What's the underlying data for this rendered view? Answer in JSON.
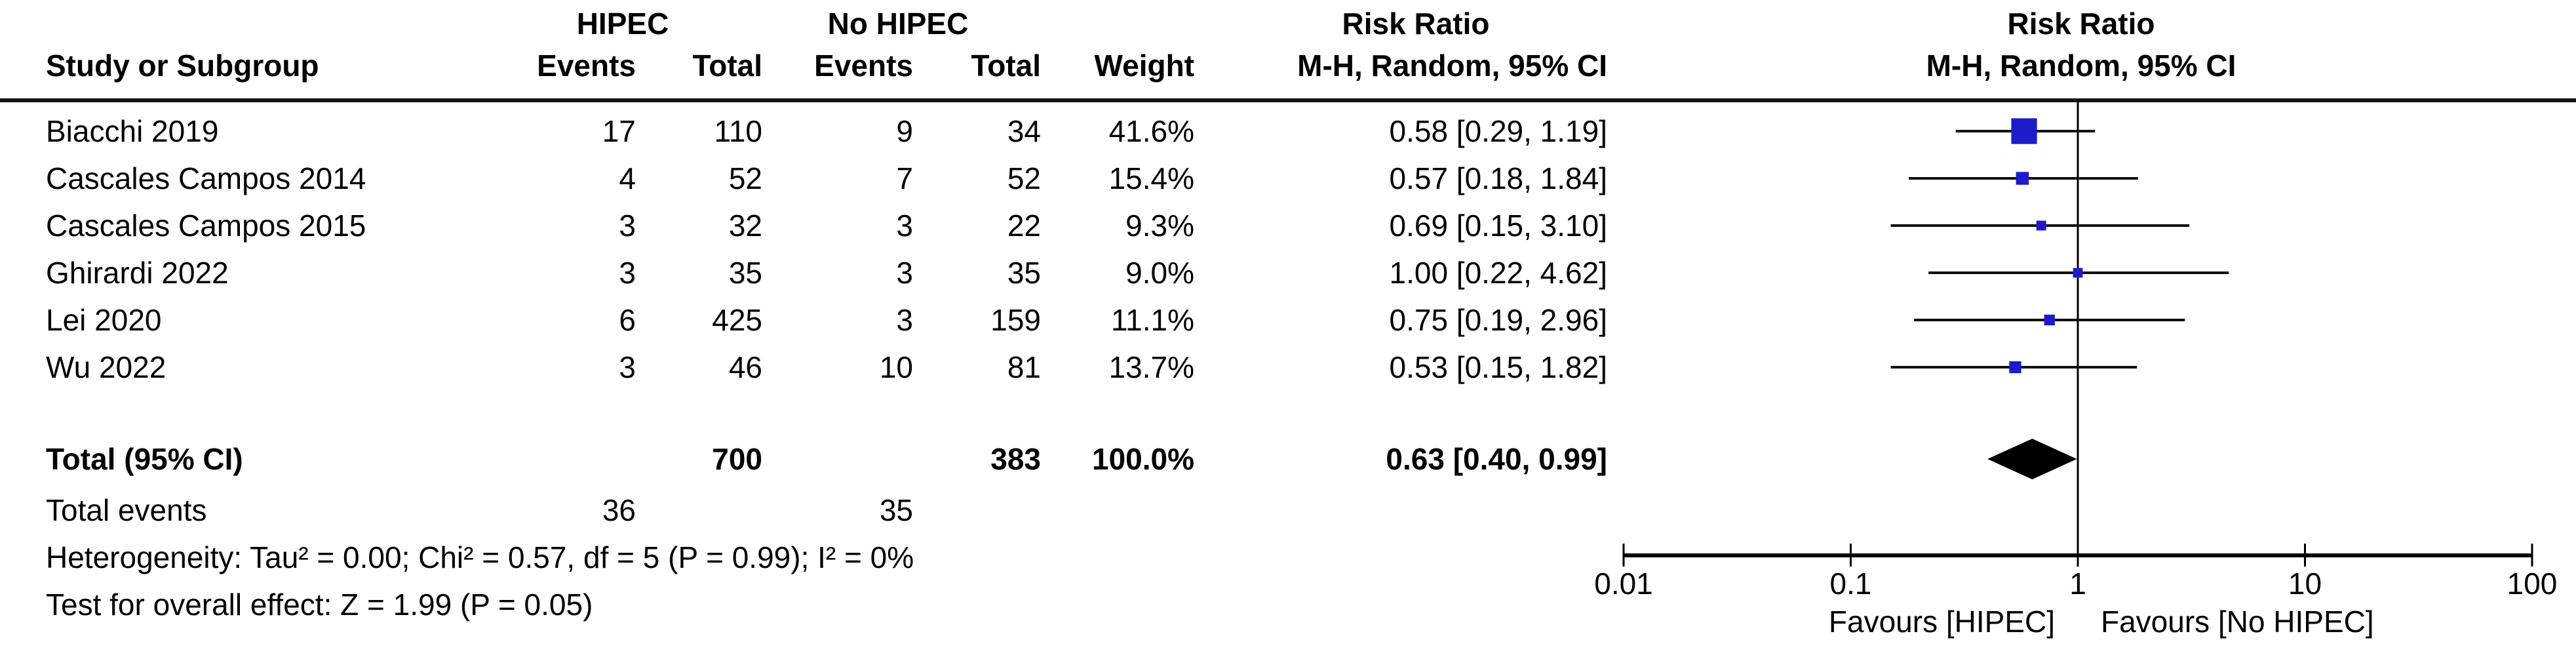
{
  "table_header": {
    "study": "Study or Subgroup",
    "group1": "HIPEC",
    "group2": "No HIPEC",
    "events": "Events",
    "total": "Total",
    "weight": "Weight",
    "risk_ratio": "Risk Ratio",
    "method": "M-H, Random, 95% CI"
  },
  "chart_data": {
    "type": "forest",
    "title": "Risk Ratio",
    "subtitle": "M-H, Random, 95% CI",
    "x_scale": "log",
    "x_range": [
      0.01,
      100
    ],
    "x_ticks": [
      "0.01",
      "0.1",
      "1",
      "10",
      "100"
    ],
    "x_tick_values": [
      0.01,
      0.1,
      1,
      10,
      100
    ],
    "null_line": 1,
    "favours_left": "Favours [HIPEC]",
    "favours_right": "Favours [No HIPEC]",
    "marker_color": "#1C1CCB",
    "diamond_color": "#000000",
    "studies": [
      {
        "name": "Biacchi 2019",
        "events_hipec": "17",
        "total_hipec": "110",
        "events_no_hipec": "9",
        "total_no_hipec": "34",
        "weight_label": "41.6%",
        "weight": 41.6,
        "rr": 0.58,
        "ci_low": 0.29,
        "ci_high": 1.19,
        "ci_label": "0.58 [0.29, 1.19]"
      },
      {
        "name": "Cascales Campos 2014",
        "events_hipec": "4",
        "total_hipec": "52",
        "events_no_hipec": "7",
        "total_no_hipec": "52",
        "weight_label": "15.4%",
        "weight": 15.4,
        "rr": 0.57,
        "ci_low": 0.18,
        "ci_high": 1.84,
        "ci_label": "0.57 [0.18, 1.84]"
      },
      {
        "name": "Cascales Campos 2015",
        "events_hipec": "3",
        "total_hipec": "32",
        "events_no_hipec": "3",
        "total_no_hipec": "22",
        "weight_label": "9.3%",
        "weight": 9.3,
        "rr": 0.69,
        "ci_low": 0.15,
        "ci_high": 3.1,
        "ci_label": "0.69 [0.15, 3.10]"
      },
      {
        "name": "Ghirardi 2022",
        "events_hipec": "3",
        "total_hipec": "35",
        "events_no_hipec": "3",
        "total_no_hipec": "35",
        "weight_label": "9.0%",
        "weight": 9.0,
        "rr": 1.0,
        "ci_low": 0.22,
        "ci_high": 4.62,
        "ci_label": "1.00 [0.22, 4.62]"
      },
      {
        "name": "Lei 2020",
        "events_hipec": "6",
        "total_hipec": "425",
        "events_no_hipec": "3",
        "total_no_hipec": "159",
        "weight_label": "11.1%",
        "weight": 11.1,
        "rr": 0.75,
        "ci_low": 0.19,
        "ci_high": 2.96,
        "ci_label": "0.75 [0.19, 2.96]"
      },
      {
        "name": "Wu 2022",
        "events_hipec": "3",
        "total_hipec": "46",
        "events_no_hipec": "10",
        "total_no_hipec": "81",
        "weight_label": "13.7%",
        "weight": 13.7,
        "rr": 0.53,
        "ci_low": 0.15,
        "ci_high": 1.82,
        "ci_label": "0.53 [0.15, 1.82]"
      }
    ],
    "total": {
      "label": "Total (95% CI)",
      "total_hipec": "700",
      "total_no_hipec": "383",
      "weight_label": "100.0%",
      "rr": 0.63,
      "ci_low": 0.4,
      "ci_high": 0.99,
      "ci_label": "0.63 [0.40, 0.99]"
    },
    "total_events": {
      "label": "Total events",
      "hipec": "36",
      "no_hipec": "35"
    },
    "heterogeneity": "Heterogeneity: Tau² = 0.00; Chi² = 0.57, df = 5 (P = 0.99); I² = 0%",
    "overall_effect": "Test for overall effect: Z = 1.99 (P = 0.05)"
  }
}
